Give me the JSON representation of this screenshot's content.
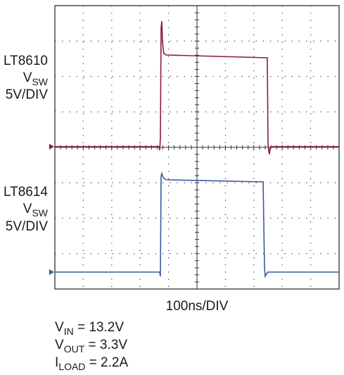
{
  "traces": [
    {
      "name": "LT8610",
      "symbol": "V",
      "subscript": "SW",
      "scale": "5V/DIV"
    },
    {
      "name": "LT8614",
      "symbol": "V",
      "subscript": "SW",
      "scale": "5V/DIV"
    }
  ],
  "time_scale": "100ns/DIV",
  "conditions": [
    {
      "symbol": "V",
      "subscript": "IN",
      "value": " = 13.2V"
    },
    {
      "symbol": "V",
      "subscript": "OUT",
      "value": " = 3.3V"
    },
    {
      "symbol": "I",
      "subscript": "LOAD",
      "value": " = 2.2A"
    }
  ]
}
